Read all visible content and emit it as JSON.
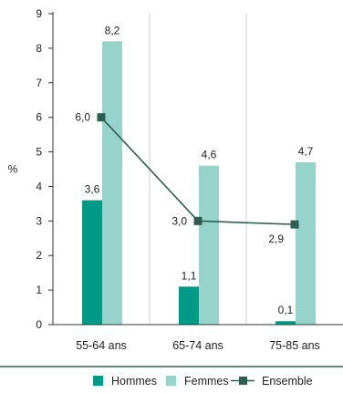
{
  "chart_data": {
    "type": "bar",
    "categories": [
      "55-64 ans",
      "65-74 ans",
      "75-85 ans"
    ],
    "series": [
      {
        "name": "Hommes",
        "kind": "bar",
        "color": "#009a87",
        "values": [
          3.6,
          1.1,
          0.1
        ],
        "labels": [
          "3,6",
          "1,1",
          "0,1"
        ]
      },
      {
        "name": "Femmes",
        "kind": "bar",
        "color": "#96d3ca",
        "values": [
          8.2,
          4.6,
          4.7
        ],
        "labels": [
          "8,2",
          "4,6",
          "4,7"
        ]
      },
      {
        "name": "Ensemble",
        "kind": "line",
        "color": "#2c5e52",
        "values": [
          6.0,
          3.0,
          2.9
        ],
        "labels": [
          "6,0",
          "3,0",
          "2,9"
        ]
      }
    ],
    "ylabel": "%",
    "ylim": [
      0,
      9
    ],
    "yticks": [
      "0",
      "1",
      "2",
      "3",
      "4",
      "5",
      "6",
      "7",
      "8",
      "9"
    ],
    "legend_position": "bottom-right",
    "separator_color": "#2c5e52"
  }
}
